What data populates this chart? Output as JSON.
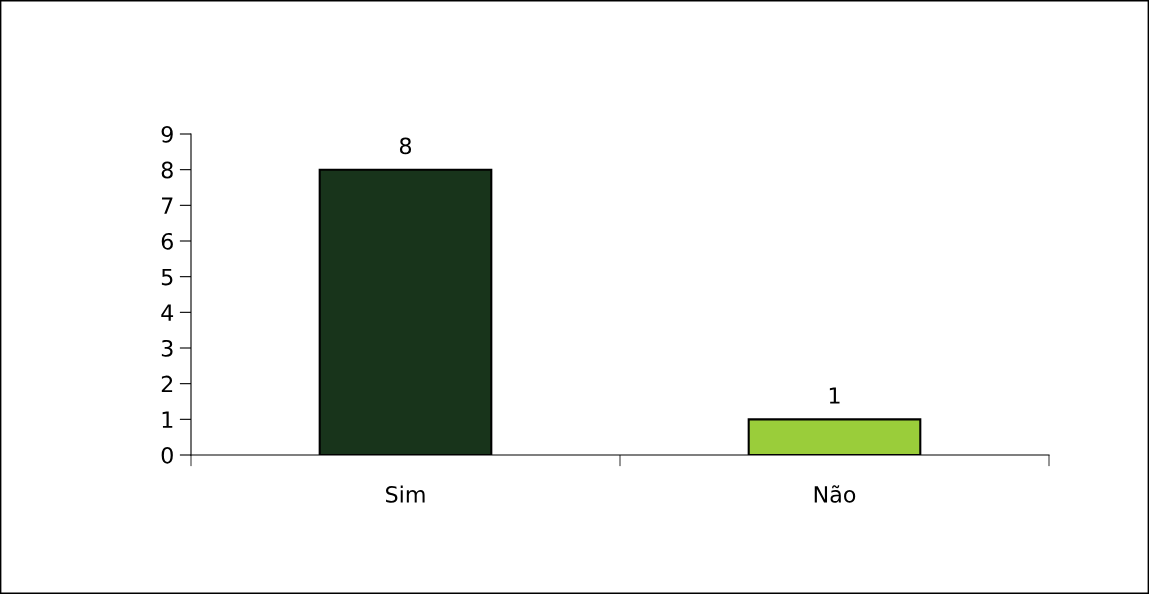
{
  "chart_data": {
    "type": "bar",
    "categories": [
      "Sim",
      "Não"
    ],
    "values": [
      8,
      1
    ],
    "colors": [
      "#18341b",
      "#9acd3a"
    ],
    "ylim": [
      0,
      9
    ],
    "yticks": [
      0,
      1,
      2,
      3,
      4,
      5,
      6,
      7,
      8,
      9
    ],
    "data_labels": true,
    "grid": false,
    "legend": false
  }
}
